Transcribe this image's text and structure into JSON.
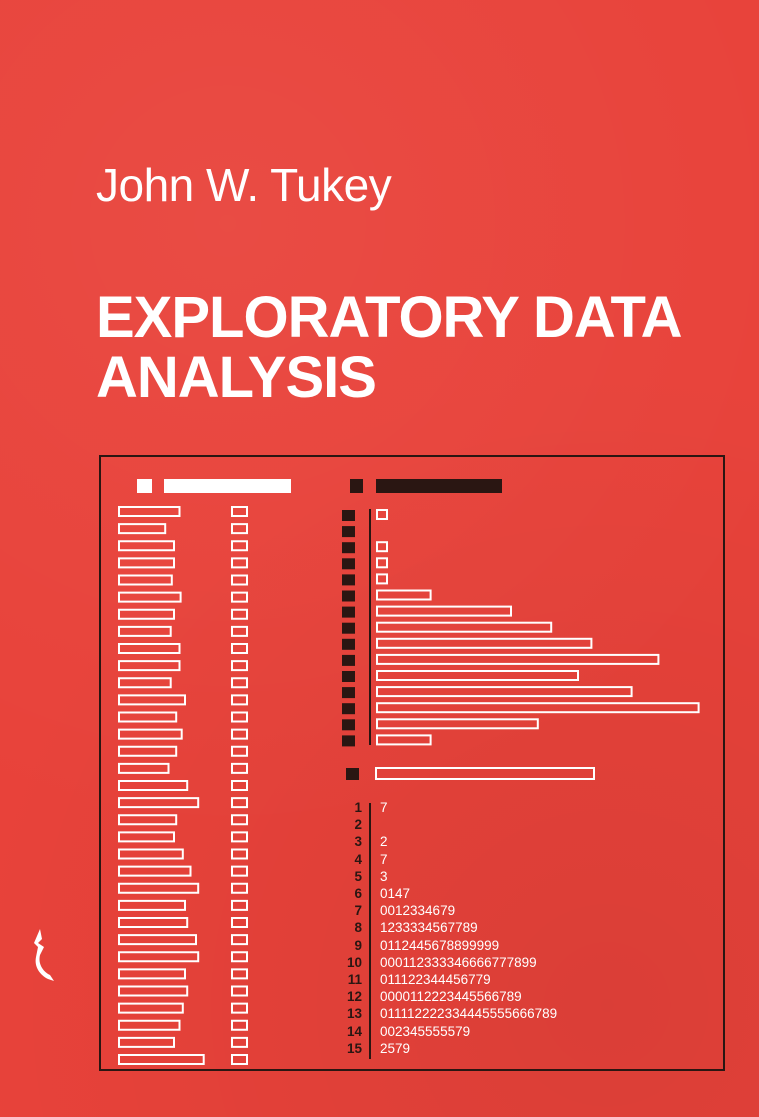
{
  "cover": {
    "author": "John W. Tukey",
    "title_line1": "EXPLORATORY DATA",
    "title_line2": "ANALYSIS"
  },
  "colors": {
    "background": "#e8423a",
    "dark": "#2a1612",
    "white": "#ffffff"
  },
  "graphic": {
    "stem_and_leaf": [
      {
        "stem": "1",
        "leaves": "7"
      },
      {
        "stem": "2",
        "leaves": ""
      },
      {
        "stem": "3",
        "leaves": "2"
      },
      {
        "stem": "4",
        "leaves": "7"
      },
      {
        "stem": "5",
        "leaves": "3"
      },
      {
        "stem": "6",
        "leaves": "0147"
      },
      {
        "stem": "7",
        "leaves": "0012334679"
      },
      {
        "stem": "8",
        "leaves": "1233334567789"
      },
      {
        "stem": "9",
        "leaves": "0112445678899999"
      },
      {
        "stem": "10",
        "leaves": "000112333346666777899"
      },
      {
        "stem": "11",
        "leaves": "011122344456779"
      },
      {
        "stem": "12",
        "leaves": "0000112223445566789"
      },
      {
        "stem": "13",
        "leaves": "011112222334445555666789"
      },
      {
        "stem": "14",
        "leaves": "002345555579"
      },
      {
        "stem": "15",
        "leaves": "2579"
      }
    ],
    "histogram_counts": [
      1,
      0,
      1,
      1,
      1,
      4,
      10,
      13,
      16,
      21,
      15,
      19,
      24,
      12,
      4
    ],
    "left_bar_lengths": [
      0.55,
      0.42,
      0.5,
      0.5,
      0.48,
      0.56,
      0.5,
      0.47,
      0.55,
      0.55,
      0.47,
      0.6,
      0.52,
      0.57,
      0.52,
      0.45,
      0.62,
      0.72,
      0.52,
      0.5,
      0.58,
      0.65,
      0.72,
      0.6,
      0.62,
      0.7,
      0.72,
      0.6,
      0.62,
      0.58,
      0.55,
      0.5,
      0.77
    ]
  }
}
